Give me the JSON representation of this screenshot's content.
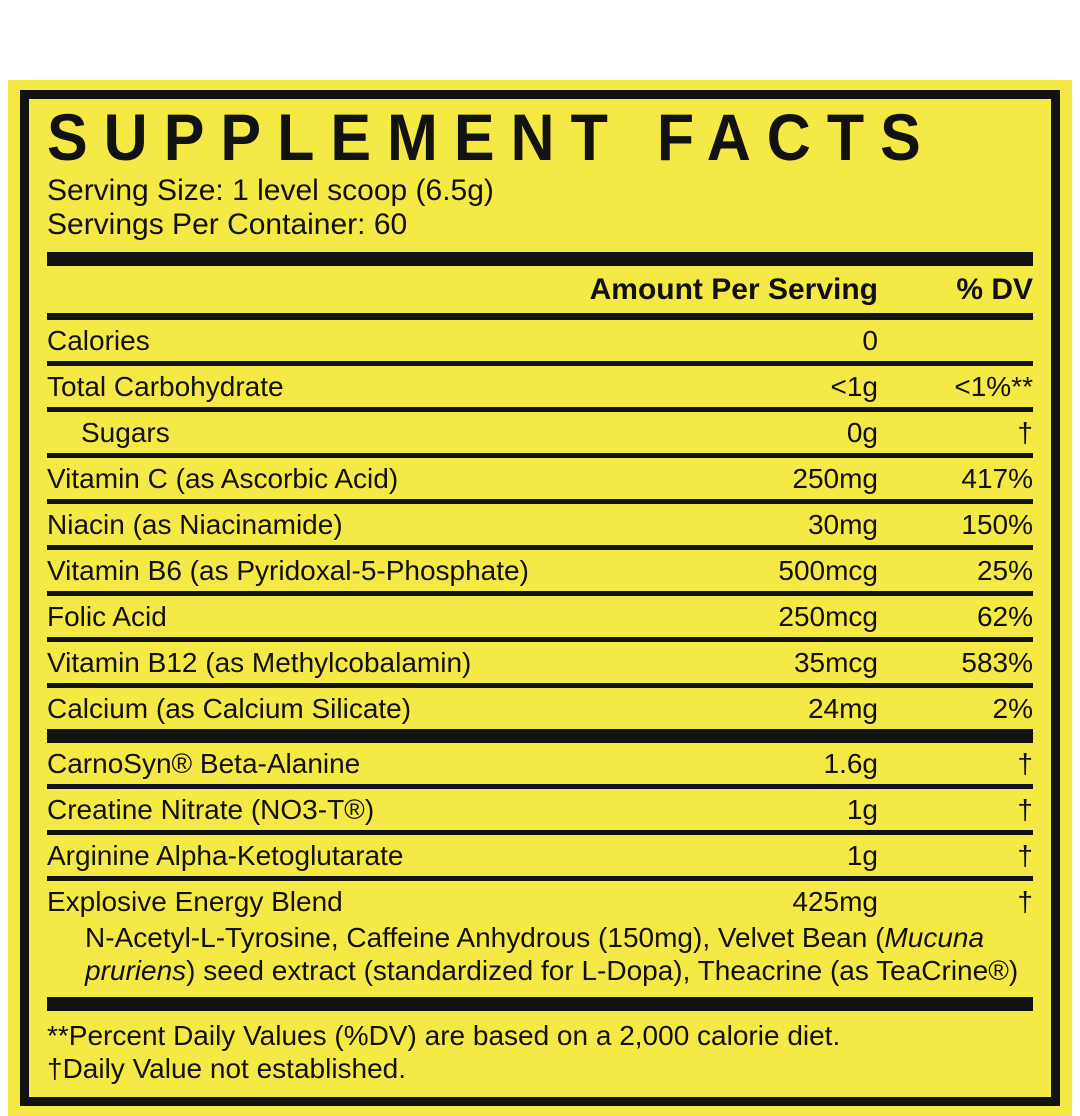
{
  "label": {
    "title": "SUPPLEMENT FACTS",
    "serving_size": "Serving Size: 1 level scoop (6.5g)",
    "servings_per_container": "Servings Per Container: 60",
    "columns": {
      "amount": "Amount Per Serving",
      "dv": "% DV"
    },
    "rows": [
      {
        "name": "Calories",
        "amount": "0",
        "dv": ""
      },
      {
        "name": "Total Carbohydrate",
        "amount": "<1g",
        "dv": "<1%**"
      },
      {
        "name": "Sugars",
        "amount": "0g",
        "dv": "†"
      },
      {
        "name": "Vitamin C (as Ascorbic Acid)",
        "amount": "250mg",
        "dv": "417%"
      },
      {
        "name": "Niacin (as Niacinamide)",
        "amount": "30mg",
        "dv": "150%"
      },
      {
        "name": "Vitamin B6 (as Pyridoxal-5-Phosphate)",
        "amount": "500mcg",
        "dv": "25%"
      },
      {
        "name": "Folic Acid",
        "amount": "250mcg",
        "dv": "62%"
      },
      {
        "name": "Vitamin B12 (as Methylcobalamin)",
        "amount": "35mcg",
        "dv": "583%"
      },
      {
        "name": "Calcium (as Calcium Silicate)",
        "amount": "24mg",
        "dv": "2%"
      },
      {
        "name": "CarnoSyn® Beta-Alanine",
        "amount": "1.6g",
        "dv": "†"
      },
      {
        "name": "Creatine Nitrate (NO3-T®)",
        "amount": "1g",
        "dv": "†"
      },
      {
        "name": "Arginine Alpha-Ketoglutarate",
        "amount": "1g",
        "dv": "†"
      },
      {
        "name": "Explosive Energy Blend",
        "amount": "425mg",
        "dv": "†"
      }
    ],
    "blend_description": {
      "part1": "N-Acetyl-L-Tyrosine, Caffeine Anhydrous (150mg), Velvet Bean (",
      "italic": "Mucuna pruriens",
      "part2": ") seed extract (standardized for L-Dopa), Theacrine (as TeaCrine®)"
    },
    "footnotes": {
      "dv_basis": "**Percent Daily Values (%DV) are based on a 2,000 calorie diet.",
      "not_established": "†Daily Value not established."
    },
    "colors": {
      "background": "#F5E945",
      "ink": "#121212"
    }
  }
}
